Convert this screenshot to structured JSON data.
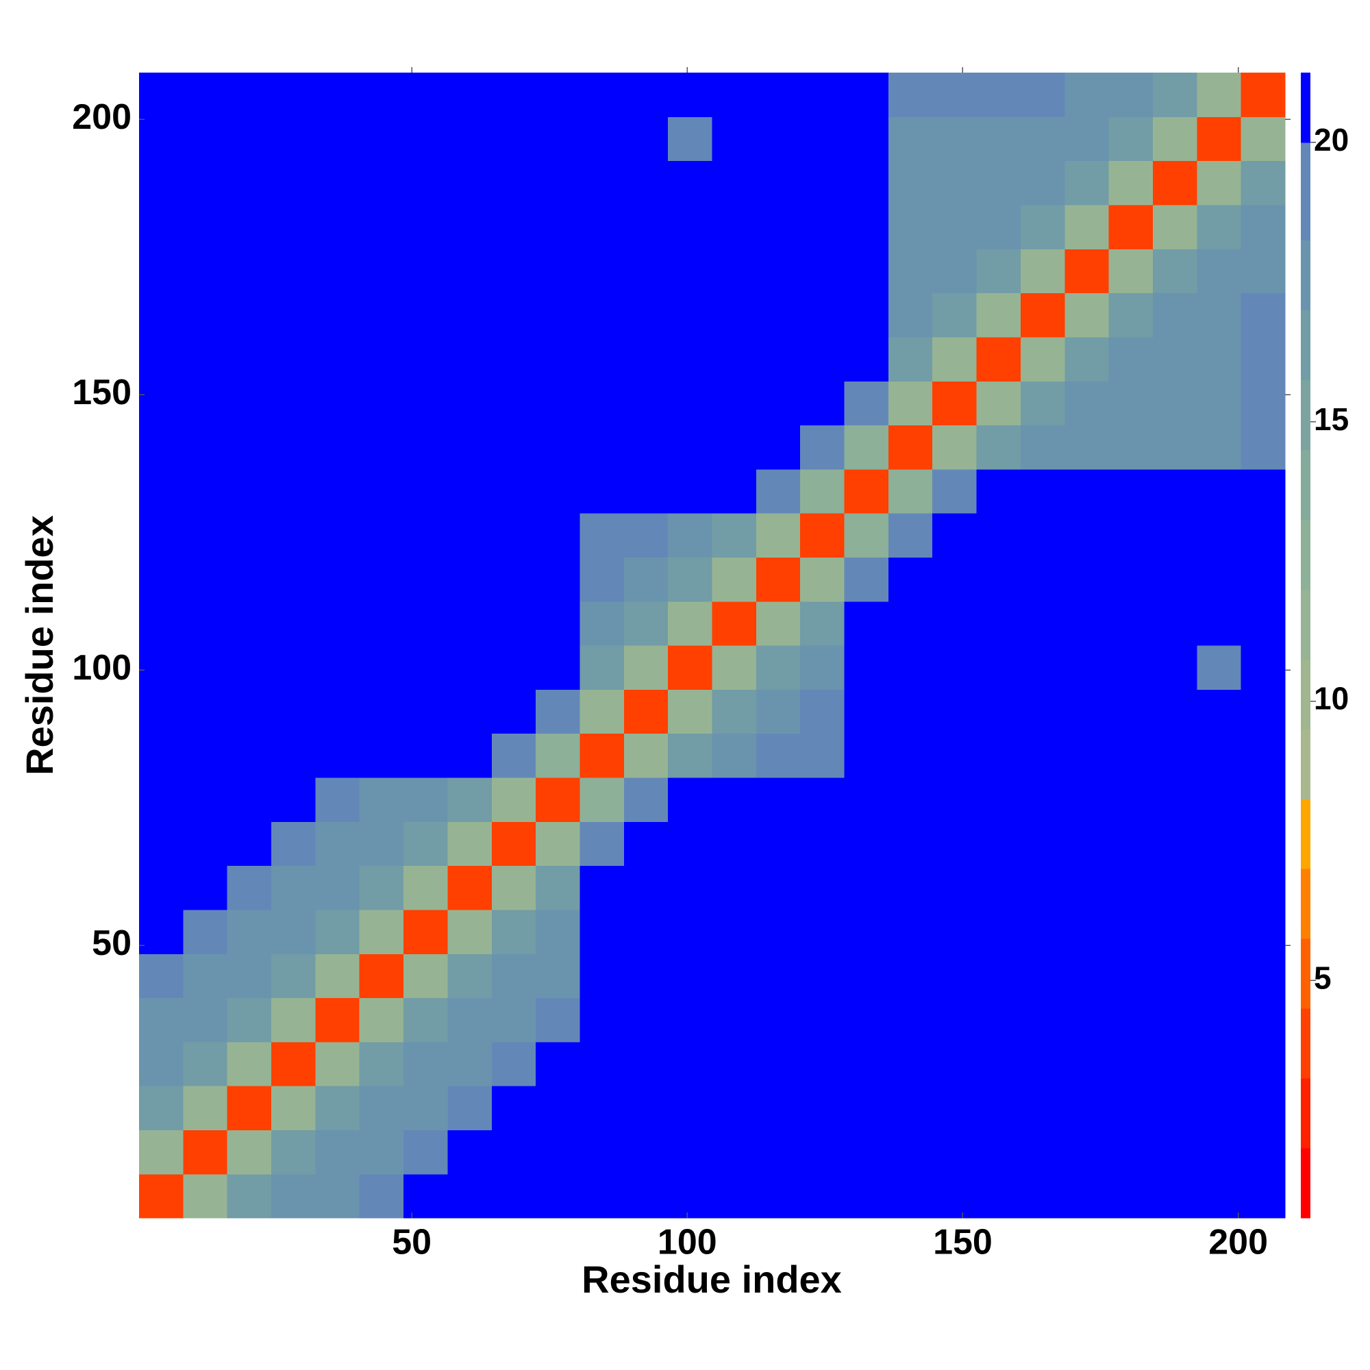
{
  "chart_data": {
    "type": "heatmap",
    "x_label": "Residue index",
    "y_label": "Residue index",
    "xlim": [
      0.5,
      208.5
    ],
    "ylim": [
      0.5,
      208.5
    ],
    "xticks": [
      50,
      100,
      150,
      200
    ],
    "yticks": [
      50,
      100,
      150,
      200
    ],
    "bin_edges": [
      0.5,
      8.5,
      16.5,
      24.5,
      32.5,
      40.5,
      48.5,
      56.5,
      64.5,
      72.5,
      80.5,
      88.5,
      96.5,
      104.5,
      112.5,
      120.5,
      128.5,
      136.5,
      144.5,
      152.5,
      160.5,
      168.5,
      176.5,
      184.5,
      192.5,
      200.5,
      208.5
    ],
    "z": [
      [
        4,
        11,
        16,
        17,
        18,
        19,
        20,
        20,
        20,
        20,
        21,
        21,
        21,
        21,
        21,
        21,
        21,
        21,
        21,
        21,
        21,
        21,
        21,
        21,
        21,
        21
      ],
      [
        11,
        4,
        11,
        16,
        17,
        18,
        19,
        20,
        20,
        20,
        21,
        21,
        21,
        21,
        21,
        21,
        21,
        21,
        21,
        21,
        21,
        21,
        21,
        21,
        21,
        21
      ],
      [
        16,
        11,
        4,
        11,
        16,
        17,
        18,
        19,
        20,
        20,
        21,
        21,
        21,
        21,
        21,
        21,
        21,
        21,
        21,
        21,
        21,
        21,
        21,
        21,
        21,
        21
      ],
      [
        17,
        16,
        11,
        4,
        11,
        16,
        17,
        18,
        19,
        20,
        21,
        21,
        21,
        21,
        21,
        21,
        21,
        21,
        21,
        21,
        21,
        21,
        21,
        21,
        21,
        21
      ],
      [
        18,
        17,
        16,
        11,
        4,
        11,
        16,
        17,
        18,
        19,
        21,
        21,
        21,
        21,
        21,
        21,
        21,
        21,
        21,
        21,
        21,
        21,
        21,
        21,
        21,
        21
      ],
      [
        19,
        18,
        17,
        16,
        11,
        4,
        11,
        16,
        17,
        18,
        21,
        21,
        21,
        21,
        21,
        21,
        21,
        21,
        21,
        21,
        21,
        21,
        21,
        21,
        21,
        21
      ],
      [
        20,
        19,
        18,
        17,
        16,
        11,
        4,
        11,
        16,
        17,
        21,
        21,
        21,
        21,
        21,
        21,
        21,
        21,
        21,
        21,
        21,
        21,
        21,
        21,
        21,
        21
      ],
      [
        20,
        20,
        19,
        18,
        17,
        16,
        11,
        4,
        11,
        16,
        21,
        21,
        21,
        21,
        21,
        21,
        21,
        21,
        21,
        21,
        21,
        21,
        21,
        21,
        21,
        21
      ],
      [
        20,
        20,
        20,
        19,
        18,
        17,
        16,
        11,
        4,
        11,
        19,
        21,
        21,
        21,
        21,
        21,
        21,
        21,
        21,
        21,
        21,
        21,
        21,
        21,
        21,
        21
      ],
      [
        20,
        20,
        20,
        20,
        19,
        18,
        17,
        16,
        11,
        4,
        13,
        19,
        21,
        21,
        21,
        21,
        21,
        21,
        21,
        21,
        21,
        21,
        21,
        21,
        21,
        21
      ],
      [
        21,
        21,
        21,
        21,
        21,
        21,
        21,
        21,
        19,
        13,
        4,
        11,
        16,
        18,
        19,
        19,
        21,
        21,
        21,
        21,
        21,
        21,
        21,
        21,
        21,
        21
      ],
      [
        21,
        21,
        21,
        21,
        21,
        21,
        21,
        21,
        21,
        19,
        11,
        4,
        11,
        16,
        18,
        19,
        21,
        21,
        21,
        21,
        21,
        21,
        21,
        21,
        21,
        21
      ],
      [
        21,
        21,
        21,
        21,
        21,
        21,
        21,
        21,
        21,
        21,
        16,
        11,
        4,
        11,
        16,
        18,
        21,
        21,
        21,
        21,
        21,
        21,
        21,
        21,
        19,
        21
      ],
      [
        21,
        21,
        21,
        21,
        21,
        21,
        21,
        21,
        21,
        21,
        18,
        16,
        11,
        4,
        11,
        16,
        21,
        21,
        21,
        21,
        21,
        21,
        21,
        21,
        21,
        21
      ],
      [
        21,
        21,
        21,
        21,
        21,
        21,
        21,
        21,
        21,
        21,
        19,
        18,
        16,
        11,
        4,
        11,
        19,
        21,
        21,
        21,
        21,
        21,
        21,
        21,
        21,
        21
      ],
      [
        21,
        21,
        21,
        21,
        21,
        21,
        21,
        21,
        21,
        21,
        19,
        19,
        18,
        16,
        11,
        4,
        13,
        19,
        21,
        21,
        21,
        21,
        21,
        21,
        21,
        21
      ],
      [
        21,
        21,
        21,
        21,
        21,
        21,
        21,
        21,
        21,
        21,
        21,
        21,
        21,
        21,
        19,
        13,
        4,
        13,
        19,
        21,
        21,
        21,
        21,
        21,
        21,
        21
      ],
      [
        21,
        21,
        21,
        21,
        21,
        21,
        21,
        21,
        21,
        21,
        21,
        21,
        21,
        21,
        21,
        19,
        13,
        4,
        11,
        16,
        17,
        18,
        18,
        18,
        18,
        19
      ],
      [
        21,
        21,
        21,
        21,
        21,
        21,
        21,
        21,
        21,
        21,
        21,
        21,
        21,
        21,
        21,
        21,
        19,
        11,
        4,
        11,
        16,
        17,
        18,
        18,
        18,
        19
      ],
      [
        21,
        21,
        21,
        21,
        21,
        21,
        21,
        21,
        21,
        21,
        21,
        21,
        21,
        21,
        21,
        21,
        21,
        16,
        11,
        4,
        11,
        16,
        17,
        18,
        18,
        19
      ],
      [
        21,
        21,
        21,
        21,
        21,
        21,
        21,
        21,
        21,
        21,
        21,
        21,
        21,
        21,
        21,
        21,
        21,
        17,
        16,
        11,
        4,
        11,
        16,
        17,
        18,
        19
      ],
      [
        21,
        21,
        21,
        21,
        21,
        21,
        21,
        21,
        21,
        21,
        21,
        21,
        21,
        21,
        21,
        21,
        21,
        18,
        17,
        16,
        11,
        4,
        11,
        16,
        17,
        18
      ],
      [
        21,
        21,
        21,
        21,
        21,
        21,
        21,
        21,
        21,
        21,
        21,
        21,
        21,
        21,
        21,
        21,
        21,
        18,
        18,
        17,
        16,
        11,
        4,
        11,
        16,
        17
      ],
      [
        21,
        21,
        21,
        21,
        21,
        21,
        21,
        21,
        21,
        21,
        21,
        21,
        21,
        21,
        21,
        21,
        21,
        18,
        18,
        18,
        17,
        16,
        11,
        4,
        11,
        16
      ],
      [
        21,
        21,
        21,
        21,
        21,
        21,
        21,
        21,
        21,
        21,
        21,
        21,
        19,
        21,
        21,
        21,
        21,
        18,
        18,
        18,
        18,
        17,
        16,
        11,
        4,
        11
      ],
      [
        21,
        21,
        21,
        21,
        21,
        21,
        21,
        21,
        21,
        21,
        21,
        21,
        21,
        21,
        21,
        21,
        21,
        19,
        19,
        19,
        19,
        18,
        17,
        16,
        11,
        4
      ]
    ],
    "colorscale": {
      "boundaries": [
        0.75,
        2,
        3.25,
        4.5,
        5.75,
        7,
        8.25,
        9.5,
        10.75,
        12,
        13.25,
        14.5,
        15.75,
        17,
        18.25,
        20,
        21.25
      ],
      "colors": [
        "#ff0000",
        "#ff2000",
        "#ff4000",
        "#ff6000",
        "#ff8000",
        "#ffa500",
        "#a8b88c",
        "#9fb690",
        "#96b494",
        "#8db098",
        "#84aa9c",
        "#7ba4a0",
        "#729ca6",
        "#6a94ad",
        "#6388b8",
        "#0000ff"
      ]
    },
    "colorbar_ticks": [
      5,
      10,
      15,
      20
    ]
  }
}
